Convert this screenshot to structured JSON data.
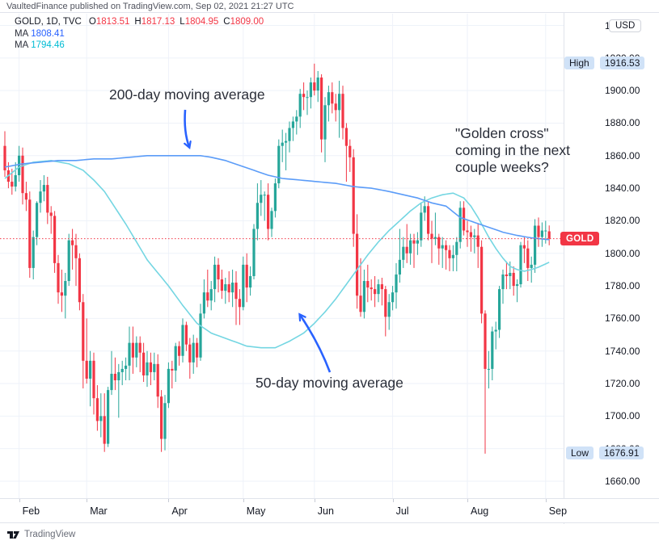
{
  "header": {
    "attribution": "VaultedFinance published on TradingView.com, Sep 02, 2021 21:27 UTC"
  },
  "legend": {
    "symbol": "GOLD, 1D, TVC",
    "o_label": "O",
    "o_value": "1813.51",
    "h_label": "H",
    "h_value": "1817.13",
    "l_label": "L",
    "l_value": "1804.95",
    "c_label": "C",
    "c_value": "1809.00",
    "ma_label": "MA",
    "ma200_value": "1808.41",
    "ma50_value": "1794.46"
  },
  "annotations": {
    "ma200_note": "200-day moving average",
    "golden_cross_line1": "\"Golden cross\"",
    "golden_cross_line2": "coming in the next",
    "golden_cross_line3": "couple weeks?",
    "ma50_note": "50-day moving average"
  },
  "badges": {
    "currency": "USD",
    "high_label": "High",
    "high_value": "1916.53",
    "low_label": "Low",
    "low_value": "1676.91",
    "symbol_marker": "GOLD"
  },
  "footer": {
    "brand": "TradingView"
  },
  "colors": {
    "up": "#26a69a",
    "down": "#f23645",
    "ma200_line": "#5b9cf8",
    "ma50_line": "#74d6e2",
    "arrow": "#2962ff",
    "price_line": "#f23645",
    "grid": "#eef2f9",
    "axis_text": "#131722",
    "high_low_badge_bg": "#d0e2f7",
    "gold_badge_bg": "#f23645"
  },
  "chart_data": {
    "type": "candlestick",
    "symbol": "GOLD",
    "interval": "1D",
    "exchange": "TVC",
    "currency": "USD",
    "title": "Gold daily chart Feb-Sep 2021 with 50-day and 200-day moving averages",
    "high": 1916.53,
    "low": 1676.91,
    "last_close": 1809.0,
    "ylim": [
      1650,
      1948
    ],
    "y_ticks": [
      1660,
      1680,
      1700,
      1720,
      1740,
      1760,
      1780,
      1800,
      1820,
      1840,
      1860,
      1880,
      1900,
      1920,
      1940
    ],
    "grid": true,
    "months": {
      "labels": [
        "Feb",
        "Mar",
        "Apr",
        "May",
        "Jun",
        "Jul",
        "Aug",
        "Sep"
      ],
      "start_indices": [
        4,
        23,
        46,
        67,
        87,
        109,
        130,
        152
      ]
    },
    "candles": [
      [
        1866,
        1875,
        1847,
        1851
      ],
      [
        1851,
        1856,
        1840,
        1844
      ],
      [
        1844,
        1852,
        1836,
        1841
      ],
      [
        1841,
        1856,
        1838,
        1848
      ],
      [
        1848,
        1866,
        1844,
        1860
      ],
      [
        1860,
        1865,
        1830,
        1837
      ],
      [
        1837,
        1844,
        1826,
        1833
      ],
      [
        1833,
        1838,
        1785,
        1791
      ],
      [
        1791,
        1814,
        1784,
        1810
      ],
      [
        1810,
        1832,
        1805,
        1831
      ],
      [
        1831,
        1845,
        1825,
        1838
      ],
      [
        1838,
        1848,
        1832,
        1842
      ],
      [
        1842,
        1847,
        1818,
        1825
      ],
      [
        1825,
        1829,
        1812,
        1823
      ],
      [
        1823,
        1826,
        1788,
        1794
      ],
      [
        1794,
        1799,
        1769,
        1776
      ],
      [
        1776,
        1790,
        1764,
        1774
      ],
      [
        1774,
        1788,
        1760,
        1783
      ],
      [
        1783,
        1812,
        1780,
        1808
      ],
      [
        1808,
        1815,
        1790,
        1805
      ],
      [
        1805,
        1812,
        1780,
        1797
      ],
      [
        1797,
        1800,
        1765,
        1770
      ],
      [
        1770,
        1775,
        1717,
        1734
      ],
      [
        1734,
        1760,
        1720,
        1723
      ],
      [
        1723,
        1740,
        1706,
        1734
      ],
      [
        1734,
        1739,
        1701,
        1711
      ],
      [
        1711,
        1719,
        1691,
        1697
      ],
      [
        1697,
        1714,
        1687,
        1700
      ],
      [
        1700,
        1714,
        1678,
        1683
      ],
      [
        1683,
        1718,
        1681,
        1716
      ],
      [
        1716,
        1740,
        1713,
        1726
      ],
      [
        1726,
        1736,
        1716,
        1722
      ],
      [
        1722,
        1732,
        1699,
        1727
      ],
      [
        1727,
        1734,
        1719,
        1729
      ],
      [
        1729,
        1736,
        1722,
        1731
      ],
      [
        1731,
        1755,
        1722,
        1745
      ],
      [
        1745,
        1755,
        1726,
        1736
      ],
      [
        1736,
        1749,
        1730,
        1745
      ],
      [
        1745,
        1749,
        1727,
        1739
      ],
      [
        1739,
        1745,
        1721,
        1725
      ],
      [
        1725,
        1740,
        1718,
        1733
      ],
      [
        1733,
        1739,
        1719,
        1727
      ],
      [
        1727,
        1739,
        1722,
        1732
      ],
      [
        1732,
        1738,
        1705,
        1712
      ],
      [
        1712,
        1716,
        1678,
        1686
      ],
      [
        1686,
        1713,
        1679,
        1708
      ],
      [
        1708,
        1733,
        1705,
        1729
      ],
      [
        1729,
        1734,
        1717,
        1728
      ],
      [
        1728,
        1745,
        1721,
        1743
      ],
      [
        1743,
        1746,
        1731,
        1737
      ],
      [
        1737,
        1760,
        1733,
        1756
      ],
      [
        1756,
        1758,
        1740,
        1744
      ],
      [
        1744,
        1748,
        1723,
        1733
      ],
      [
        1733,
        1750,
        1726,
        1745
      ],
      [
        1745,
        1748,
        1730,
        1736
      ],
      [
        1736,
        1769,
        1734,
        1763
      ],
      [
        1763,
        1784,
        1760,
        1776
      ],
      [
        1776,
        1790,
        1767,
        1771
      ],
      [
        1771,
        1783,
        1765,
        1778
      ],
      [
        1778,
        1798,
        1770,
        1793
      ],
      [
        1793,
        1797,
        1776,
        1784
      ],
      [
        1784,
        1790,
        1772,
        1777
      ],
      [
        1777,
        1785,
        1769,
        1781
      ],
      [
        1781,
        1789,
        1770,
        1776
      ],
      [
        1776,
        1790,
        1767,
        1782
      ],
      [
        1782,
        1789,
        1756,
        1772
      ],
      [
        1772,
        1778,
        1756,
        1767
      ],
      [
        1767,
        1798,
        1765,
        1793
      ],
      [
        1793,
        1800,
        1770,
        1779
      ],
      [
        1779,
        1792,
        1774,
        1786
      ],
      [
        1786,
        1818,
        1784,
        1815
      ],
      [
        1815,
        1843,
        1808,
        1831
      ],
      [
        1831,
        1845,
        1823,
        1836
      ],
      [
        1836,
        1838,
        1820,
        1836
      ],
      [
        1836,
        1843,
        1808,
        1815
      ],
      [
        1815,
        1828,
        1810,
        1826
      ],
      [
        1826,
        1846,
        1822,
        1843
      ],
      [
        1843,
        1870,
        1840,
        1866
      ],
      [
        1866,
        1876,
        1856,
        1868
      ],
      [
        1868,
        1874,
        1851,
        1869
      ],
      [
        1869,
        1881,
        1862,
        1877
      ],
      [
        1877,
        1884,
        1869,
        1881
      ],
      [
        1881,
        1888,
        1873,
        1884
      ],
      [
        1884,
        1901,
        1877,
        1898
      ],
      [
        1898,
        1905,
        1888,
        1896
      ],
      [
        1896,
        1900,
        1885,
        1896
      ],
      [
        1896,
        1908,
        1889,
        1905
      ],
      [
        1905,
        1916.53,
        1897,
        1900
      ],
      [
        1900,
        1912,
        1893,
        1908
      ],
      [
        1908,
        1910,
        1862,
        1870
      ],
      [
        1870,
        1896,
        1856,
        1891
      ],
      [
        1891,
        1903,
        1881,
        1899
      ],
      [
        1899,
        1905,
        1886,
        1892
      ],
      [
        1892,
        1898,
        1881,
        1888
      ],
      [
        1888,
        1906,
        1871,
        1898
      ],
      [
        1898,
        1903,
        1870,
        1877
      ],
      [
        1877,
        1880,
        1844,
        1866
      ],
      [
        1866,
        1870,
        1850,
        1859
      ],
      [
        1859,
        1864,
        1804,
        1812
      ],
      [
        1812,
        1824,
        1766,
        1774
      ],
      [
        1774,
        1797,
        1761,
        1764
      ],
      [
        1764,
        1790,
        1760,
        1783
      ],
      [
        1783,
        1793,
        1770,
        1779
      ],
      [
        1779,
        1784,
        1771,
        1778
      ],
      [
        1778,
        1786,
        1767,
        1775
      ],
      [
        1775,
        1784,
        1770,
        1781
      ],
      [
        1781,
        1785,
        1768,
        1778
      ],
      [
        1778,
        1780,
        1749,
        1761
      ],
      [
        1761,
        1775,
        1753,
        1770
      ],
      [
        1770,
        1780,
        1765,
        1776
      ],
      [
        1776,
        1794,
        1766,
        1787
      ],
      [
        1787,
        1815,
        1782,
        1796
      ],
      [
        1796,
        1810,
        1791,
        1804
      ],
      [
        1804,
        1818,
        1794,
        1800
      ],
      [
        1800,
        1812,
        1793,
        1808
      ],
      [
        1808,
        1812,
        1791,
        1806
      ],
      [
        1806,
        1813,
        1799,
        1808
      ],
      [
        1808,
        1831,
        1804,
        1825
      ],
      [
        1825,
        1835,
        1820,
        1829
      ],
      [
        1829,
        1832,
        1808,
        1812
      ],
      [
        1812,
        1820,
        1794,
        1809
      ],
      [
        1809,
        1825,
        1805,
        1810
      ],
      [
        1810,
        1812,
        1793,
        1803
      ],
      [
        1803,
        1810,
        1791,
        1805
      ],
      [
        1805,
        1808,
        1790,
        1802
      ],
      [
        1802,
        1805,
        1789,
        1797
      ],
      [
        1797,
        1805,
        1789,
        1799
      ],
      [
        1799,
        1810,
        1789,
        1807
      ],
      [
        1807,
        1832,
        1803,
        1828
      ],
      [
        1828,
        1832,
        1811,
        1814
      ],
      [
        1814,
        1820,
        1804,
        1813
      ],
      [
        1813,
        1817,
        1801,
        1810
      ],
      [
        1810,
        1815,
        1800,
        1811
      ],
      [
        1811,
        1818,
        1791,
        1804
      ],
      [
        1804,
        1808,
        1757,
        1763
      ],
      [
        1763,
        1765,
        1676.91,
        1729
      ],
      [
        1729,
        1740,
        1717,
        1729
      ],
      [
        1729,
        1755,
        1722,
        1752
      ],
      [
        1752,
        1758,
        1741,
        1753
      ],
      [
        1753,
        1780,
        1748,
        1778
      ],
      [
        1778,
        1790,
        1769,
        1787
      ],
      [
        1787,
        1795,
        1778,
        1786
      ],
      [
        1786,
        1795,
        1778,
        1788
      ],
      [
        1788,
        1792,
        1774,
        1780
      ],
      [
        1780,
        1784,
        1770,
        1781
      ],
      [
        1781,
        1807,
        1779,
        1805
      ],
      [
        1805,
        1810,
        1794,
        1803
      ],
      [
        1803,
        1808,
        1783,
        1791
      ],
      [
        1791,
        1798,
        1782,
        1793
      ],
      [
        1793,
        1821,
        1788,
        1817
      ],
      [
        1817,
        1822,
        1804,
        1810
      ],
      [
        1810,
        1819,
        1804,
        1814
      ],
      [
        1814,
        1820,
        1806,
        1814
      ],
      [
        1813.51,
        1817.13,
        1804.95,
        1809
      ]
    ],
    "ma200": {
      "name": "200-day moving average",
      "keypoints": [
        [
          0,
          1853
        ],
        [
          5,
          1855
        ],
        [
          10,
          1856
        ],
        [
          15,
          1857
        ],
        [
          20,
          1857
        ],
        [
          25,
          1858
        ],
        [
          30,
          1858
        ],
        [
          35,
          1859
        ],
        [
          40,
          1860
        ],
        [
          45,
          1860
        ],
        [
          50,
          1860
        ],
        [
          55,
          1860
        ],
        [
          58,
          1859
        ],
        [
          62,
          1857
        ],
        [
          66,
          1854
        ],
        [
          70,
          1851
        ],
        [
          74,
          1848
        ],
        [
          78,
          1846
        ],
        [
          83,
          1845
        ],
        [
          88,
          1844
        ],
        [
          93,
          1843
        ],
        [
          98,
          1841
        ],
        [
          103,
          1840
        ],
        [
          108,
          1838
        ],
        [
          112,
          1836
        ],
        [
          116,
          1834
        ],
        [
          120,
          1831
        ],
        [
          124,
          1829
        ],
        [
          128,
          1822
        ],
        [
          132,
          1819
        ],
        [
          136,
          1816
        ],
        [
          140,
          1813
        ],
        [
          144,
          1811
        ],
        [
          148,
          1809.5
        ],
        [
          153,
          1808.4
        ]
      ]
    },
    "ma50": {
      "name": "50-day moving average",
      "keypoints": [
        [
          0,
          1846
        ],
        [
          4,
          1853
        ],
        [
          8,
          1856
        ],
        [
          13,
          1857
        ],
        [
          18,
          1855
        ],
        [
          22,
          1851
        ],
        [
          25,
          1845
        ],
        [
          28,
          1838
        ],
        [
          31,
          1828
        ],
        [
          34,
          1818
        ],
        [
          37,
          1807
        ],
        [
          40,
          1796
        ],
        [
          43,
          1788
        ],
        [
          46,
          1780
        ],
        [
          50,
          1768
        ],
        [
          54,
          1757
        ],
        [
          58,
          1751
        ],
        [
          63,
          1747
        ],
        [
          68,
          1743
        ],
        [
          72,
          1742
        ],
        [
          76,
          1742
        ],
        [
          80,
          1746
        ],
        [
          84,
          1751
        ],
        [
          87,
          1757
        ],
        [
          90,
          1764
        ],
        [
          93,
          1772
        ],
        [
          96,
          1781
        ],
        [
          99,
          1790
        ],
        [
          102,
          1799
        ],
        [
          105,
          1807
        ],
        [
          108,
          1814
        ],
        [
          111,
          1820
        ],
        [
          114,
          1826
        ],
        [
          117,
          1831
        ],
        [
          120,
          1834
        ],
        [
          123,
          1836
        ],
        [
          126,
          1837
        ],
        [
          129,
          1834
        ],
        [
          131,
          1829
        ],
        [
          133,
          1822
        ],
        [
          134,
          1818
        ],
        [
          136,
          1810
        ],
        [
          138,
          1803
        ],
        [
          140,
          1797
        ],
        [
          142,
          1792
        ],
        [
          144,
          1790
        ],
        [
          146,
          1789
        ],
        [
          148,
          1790
        ],
        [
          150,
          1791.5
        ],
        [
          152,
          1793.5
        ],
        [
          153,
          1794.5
        ]
      ]
    }
  }
}
